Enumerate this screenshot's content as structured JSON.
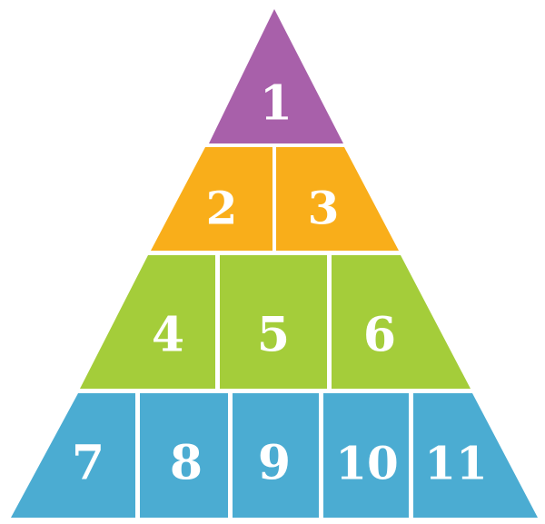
{
  "rows": [
    {
      "name": "row-1",
      "color": "#a860aa",
      "cells": [
        {
          "label": "1"
        }
      ]
    },
    {
      "name": "row-2",
      "color": "#f9ae1a",
      "cells": [
        {
          "label": "2"
        },
        {
          "label": "3"
        }
      ]
    },
    {
      "name": "row-3",
      "color": "#a4cd3a",
      "cells": [
        {
          "label": "4"
        },
        {
          "label": "5"
        },
        {
          "label": "6"
        }
      ]
    },
    {
      "name": "row-4",
      "color": "#4bacd2",
      "cells": [
        {
          "label": "7"
        },
        {
          "label": "8"
        },
        {
          "label": "9"
        },
        {
          "label": "10"
        },
        {
          "label": "11"
        }
      ]
    }
  ]
}
